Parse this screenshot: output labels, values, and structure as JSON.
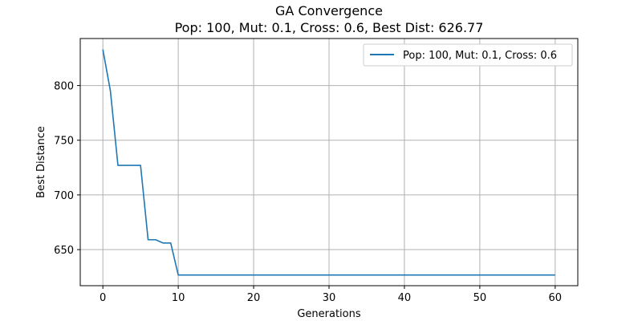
{
  "chart_data": {
    "type": "line",
    "title": "GA Convergence",
    "subtitle": "Pop: 100, Mut: 0.1, Cross: 0.6, Best Dist: 626.77",
    "xlabel": "Generations",
    "ylabel": "Best Distance",
    "xlim": [
      -3,
      63
    ],
    "ylim": [
      617,
      843
    ],
    "xticks": [
      0,
      10,
      20,
      30,
      40,
      50,
      60
    ],
    "yticks": [
      650,
      700,
      750,
      800
    ],
    "grid": true,
    "legend_position": "top-right",
    "series": [
      {
        "name": "Pop: 100, Mut: 0.1, Cross: 0.6",
        "color": "#1f77b4",
        "x": [
          0,
          1,
          2,
          3,
          4,
          5,
          6,
          7,
          8,
          9,
          10,
          60
        ],
        "y": [
          833,
          795,
          727,
          727,
          727,
          727,
          659,
          659,
          656,
          656,
          626.77,
          626.77
        ]
      }
    ]
  }
}
